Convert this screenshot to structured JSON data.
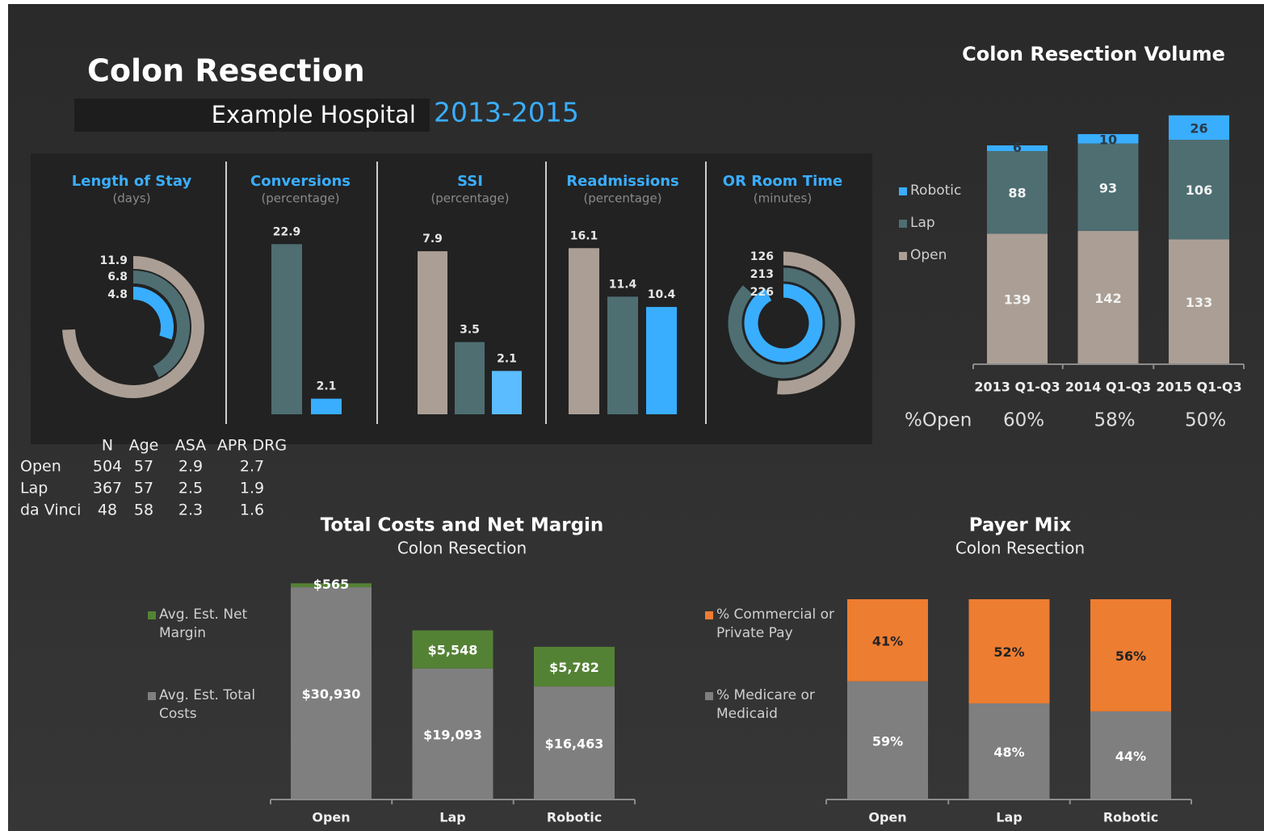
{
  "header": {
    "title": "Colon Resection",
    "subtitle": "Example Hospital",
    "years": "2013-2015"
  },
  "table": {
    "columns": [
      "N",
      "Age",
      "ASA",
      "APR DRG"
    ],
    "rows": [
      [
        "Open",
        504,
        57,
        2.9,
        2.7
      ],
      [
        "Lap",
        367,
        57,
        2.5,
        1.9
      ],
      [
        "da Vinci",
        48,
        58,
        2.3,
        1.6
      ]
    ]
  },
  "chart_data": [
    {
      "type": "radial",
      "title": "Length of Stay",
      "subtitle": "(days)",
      "values": [
        11.9,
        6.8,
        4.8
      ],
      "colors": [
        "#ab9f95",
        "#4e6e72",
        "#39aeff"
      ],
      "xlim": [
        0,
        16
      ]
    },
    {
      "type": "bar",
      "title": "Conversions",
      "subtitle": "(percentage)",
      "values": [
        22.9,
        2.1
      ],
      "colors": [
        "#4e6e72",
        "#39aeff"
      ],
      "ylim": [
        0,
        25
      ]
    },
    {
      "type": "bar",
      "title": "SSI",
      "subtitle": "(percentage)",
      "values": [
        7.9,
        3.5,
        2.1
      ],
      "colors": [
        "#ab9f95",
        "#4e6e72",
        "#5bbcff"
      ],
      "ylim": [
        0,
        9
      ]
    },
    {
      "type": "bar",
      "title": "Readmissions",
      "subtitle": "(percentage)",
      "values": [
        16.1,
        11.4,
        10.4
      ],
      "colors": [
        "#ab9f95",
        "#4e6e72",
        "#39aeff"
      ],
      "ylim": [
        0,
        18
      ]
    },
    {
      "type": "radial",
      "title": "OR Room Time",
      "subtitle": "(minutes)",
      "values": [
        126,
        213,
        226
      ],
      "colors": [
        "#ab9f95",
        "#4e6e72",
        "#39aeff"
      ],
      "xlim": [
        0,
        245
      ]
    },
    {
      "type": "stacked_bar",
      "title": "Colon Resection Volume",
      "categories": [
        "2013 Q1-Q3",
        "2014 Q1-Q3",
        "2015 Q1-Q3"
      ],
      "ylim": [
        0,
        270
      ],
      "series": [
        {
          "name": "Open",
          "color": "#ab9f95",
          "label_color": "#f2f2f2",
          "values": [
            139,
            142,
            133
          ]
        },
        {
          "name": "Lap",
          "color": "#4e6e72",
          "label_color": "#f2f2f2",
          "values": [
            88,
            93,
            106
          ]
        },
        {
          "name": "Robotic",
          "color": "#39aeff",
          "label_color": "#2a3a48",
          "values": [
            6,
            10,
            26
          ]
        }
      ],
      "footer": {
        "label": "%Open",
        "values": [
          60,
          58,
          50
        ],
        "value_labels": [
          "60%",
          "58%",
          "50%"
        ]
      }
    },
    {
      "type": "stacked_bar",
      "title": "Total Costs and Net Margin",
      "subtitle": "Colon Resection",
      "categories": [
        "Open",
        "Lap",
        "Robotic"
      ],
      "ylim": [
        0,
        32000
      ],
      "series": [
        {
          "name": "Avg. Est. Total Costs",
          "color": "#7f7f7f",
          "label_color": "#ffffff",
          "values": [
            30930,
            19093,
            16463
          ],
          "value_labels": [
            "$30,930",
            "$19,093",
            "$16,463"
          ]
        },
        {
          "name": "Avg. Est. Net Margin",
          "color": "#548235",
          "label_color": "#ffffff",
          "values": [
            565,
            5548,
            5782
          ],
          "value_labels": [
            "$565",
            "$5,548",
            "$5,782"
          ]
        }
      ]
    },
    {
      "type": "stacked_bar",
      "title": "Payer Mix",
      "subtitle": "Colon Resection",
      "categories": [
        "Open",
        "Lap",
        "Robotic"
      ],
      "ylim": [
        0,
        100
      ],
      "series": [
        {
          "name": "% Medicare or Medicaid",
          "color": "#7f7f7f",
          "label_color": "#ffffff",
          "values": [
            59,
            48,
            44
          ],
          "value_labels": [
            "59%",
            "48%",
            "44%"
          ]
        },
        {
          "name": "% Commercial or Private Pay",
          "color": "#ed7d31",
          "label_color": "#222222",
          "values": [
            41,
            52,
            56
          ],
          "value_labels": [
            "41%",
            "52%",
            "56%"
          ]
        }
      ]
    }
  ]
}
